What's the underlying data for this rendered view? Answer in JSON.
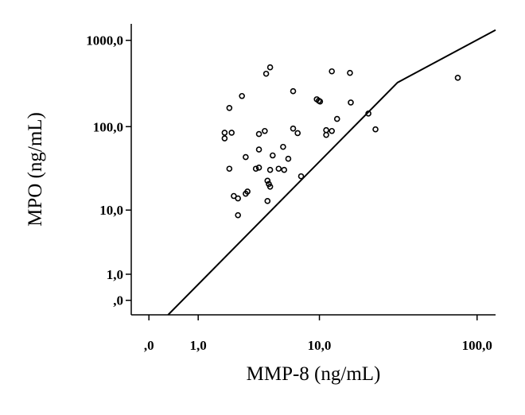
{
  "chart_data": {
    "type": "scatter",
    "xlabel": "MMP-8 (ng/mL)",
    "ylabel": "MPO (ng/mL)",
    "xscale": "log1p",
    "yscale": "log1p",
    "xlim": [
      -0.22,
      130
    ],
    "ylim": [
      -0.32,
      1550
    ],
    "xticks": [
      {
        "value": 0,
        "label": ",0"
      },
      {
        "value": 1,
        "label": "1,0"
      },
      {
        "value": 10,
        "label": "10,0"
      },
      {
        "value": 100,
        "label": "100,0"
      }
    ],
    "yticks": [
      {
        "value": 0,
        "label": ",0"
      },
      {
        "value": 1,
        "label": "1,0"
      },
      {
        "value": 10,
        "label": "10,0"
      },
      {
        "value": 100,
        "label": "100,0"
      },
      {
        "value": 1000,
        "label": "1000,0"
      }
    ],
    "series": [
      {
        "type": "scatter",
        "color": "#000000",
        "x": [
          1.9,
          1.9,
          2.2,
          2.1,
          2.7,
          2.1,
          2.3,
          2.5,
          2.5,
          2.9,
          3.0,
          2.9,
          3.5,
          3.7,
          3.7,
          3.7,
          4.1,
          4.2,
          4.5,
          4.3,
          4.4,
          4.5,
          4.3,
          4.7,
          4.5,
          5.2,
          5.6,
          5.7,
          6.1,
          6.6,
          6.6,
          7.1,
          7.5,
          9.6,
          10.1,
          9.9,
          11.1,
          11.1,
          12.1,
          12.1,
          13.1,
          15.9,
          16.1,
          20.9,
          23.2,
          76
        ],
        "values": [
          85,
          73,
          85,
          165,
          227,
          32,
          15,
          14,
          8.6,
          16,
          17,
          44,
          32,
          33,
          54,
          82,
          89,
          411,
          487,
          23,
          21,
          19.5,
          13,
          46,
          31,
          32,
          58,
          31,
          42,
          258,
          95,
          84,
          26,
          208,
          196,
          200,
          91,
          80,
          89,
          438,
          123,
          420,
          191,
          142,
          93,
          369
        ]
      },
      {
        "type": "line",
        "color": "#000000",
        "x": [
          0.31,
          32,
          130
        ],
        "values": [
          -0.32,
          325,
          1315
        ]
      }
    ]
  }
}
